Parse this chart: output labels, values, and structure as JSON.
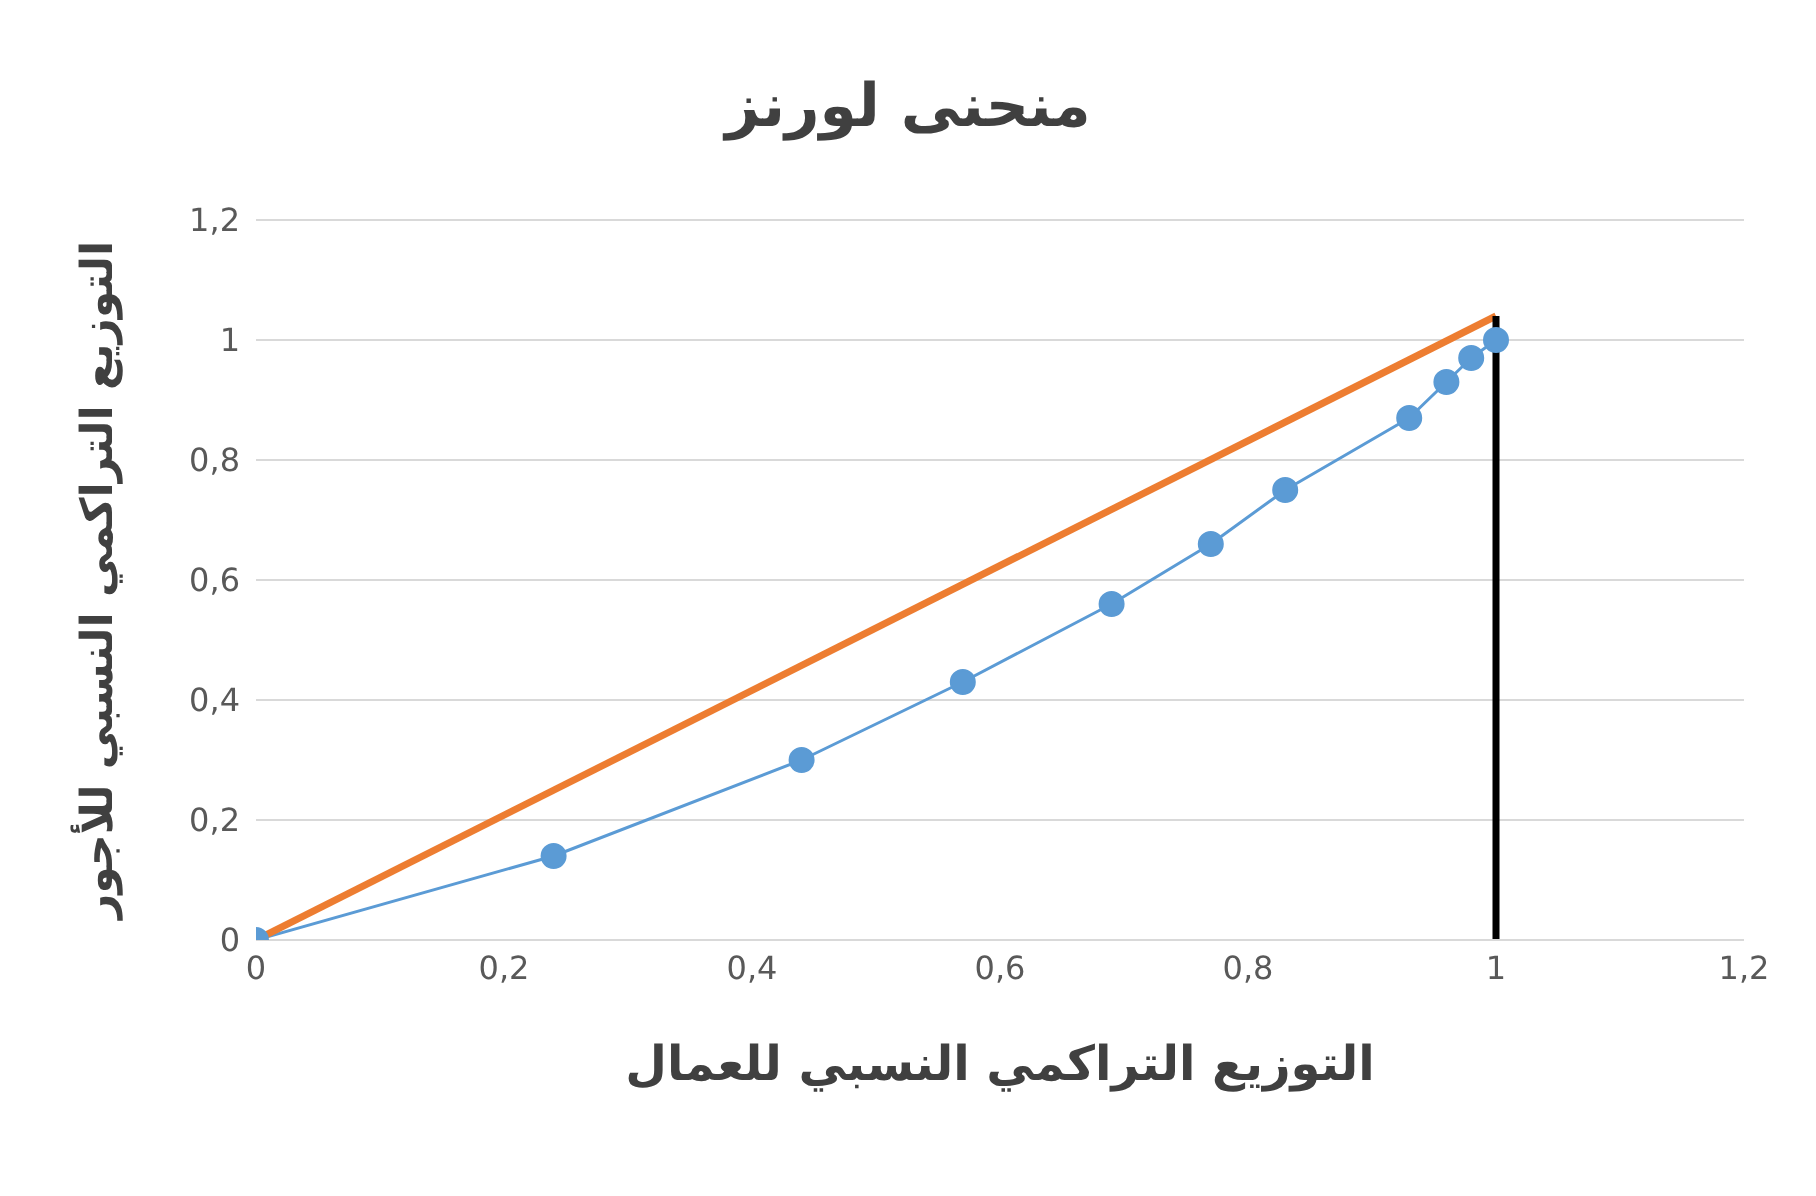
{
  "chart_data": {
    "type": "line",
    "title": "منحنى لورنز",
    "xlabel": "التوزيع التراكمي النسبي للعمال",
    "ylabel": "التوزيع التراكمي النسبي للأجور",
    "xlim": [
      0,
      1.2
    ],
    "ylim": [
      0,
      1.2
    ],
    "xticks": [
      0,
      {
        "value": 0.2,
        "label": "0,2"
      },
      {
        "value": 0.4,
        "label": "0,4"
      },
      {
        "value": 0.6,
        "label": "0,6"
      },
      {
        "value": 0.8,
        "label": "0,8"
      },
      1,
      {
        "value": 1.2,
        "label": "1,2"
      }
    ],
    "yticks": [
      0,
      {
        "value": 0.2,
        "label": "0,2"
      },
      {
        "value": 0.4,
        "label": "0,4"
      },
      {
        "value": 0.6,
        "label": "0,6"
      },
      {
        "value": 0.8,
        "label": "0,8"
      },
      1,
      {
        "value": 1.2,
        "label": "1,2"
      }
    ],
    "grid": "y",
    "series": [
      {
        "color": "#5b9bd5",
        "marker": "circle",
        "x": [
          0,
          0.24,
          0.44,
          0.57,
          0.69,
          0.77,
          0.83,
          0.93,
          0.96,
          0.98,
          1
        ],
        "values": [
          0,
          0.14,
          0.3,
          0.43,
          0.56,
          0.66,
          0.75,
          0.87,
          0.93,
          0.97,
          1
        ]
      },
      {
        "color": "#ed7d31",
        "marker": "none",
        "x": [
          0,
          1
        ],
        "values": [
          0,
          1.04
        ]
      },
      {
        "color": "#000000",
        "marker": "none",
        "x": [
          1,
          1
        ],
        "values": [
          0,
          1.04
        ]
      }
    ]
  }
}
